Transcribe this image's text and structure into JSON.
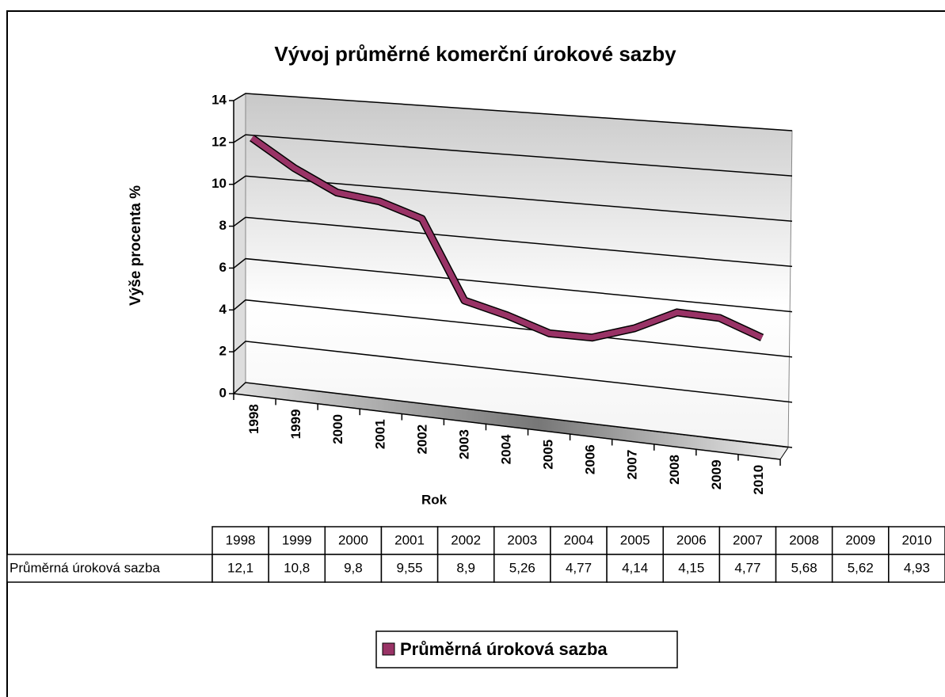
{
  "chart_data": {
    "type": "line",
    "title": "Vývoj průměrné komerční úrokové sazby",
    "x_label": "Rok",
    "y_label": "Výše procenta %",
    "categories": [
      "1998",
      "1999",
      "2000",
      "2001",
      "2002",
      "2003",
      "2004",
      "2005",
      "2006",
      "2007",
      "2008",
      "2009",
      "2010"
    ],
    "series": [
      {
        "name": "Průměrná úroková sazba",
        "color": "#993366",
        "values": [
          12.1,
          10.8,
          9.8,
          9.55,
          8.9,
          5.26,
          4.77,
          4.14,
          4.15,
          4.77,
          5.68,
          5.62,
          4.93
        ],
        "value_labels": [
          "12,1",
          "10,8",
          "9,8",
          "9,55",
          "8,9",
          "5,26",
          "4,77",
          "4,14",
          "4,15",
          "4,77",
          "5,68",
          "5,62",
          "4,93"
        ]
      }
    ],
    "ylim": [
      0,
      14
    ],
    "yticks": [
      0,
      2,
      4,
      6,
      8,
      10,
      12,
      14
    ],
    "grid": true,
    "legend": "bottom",
    "data_table": true
  }
}
